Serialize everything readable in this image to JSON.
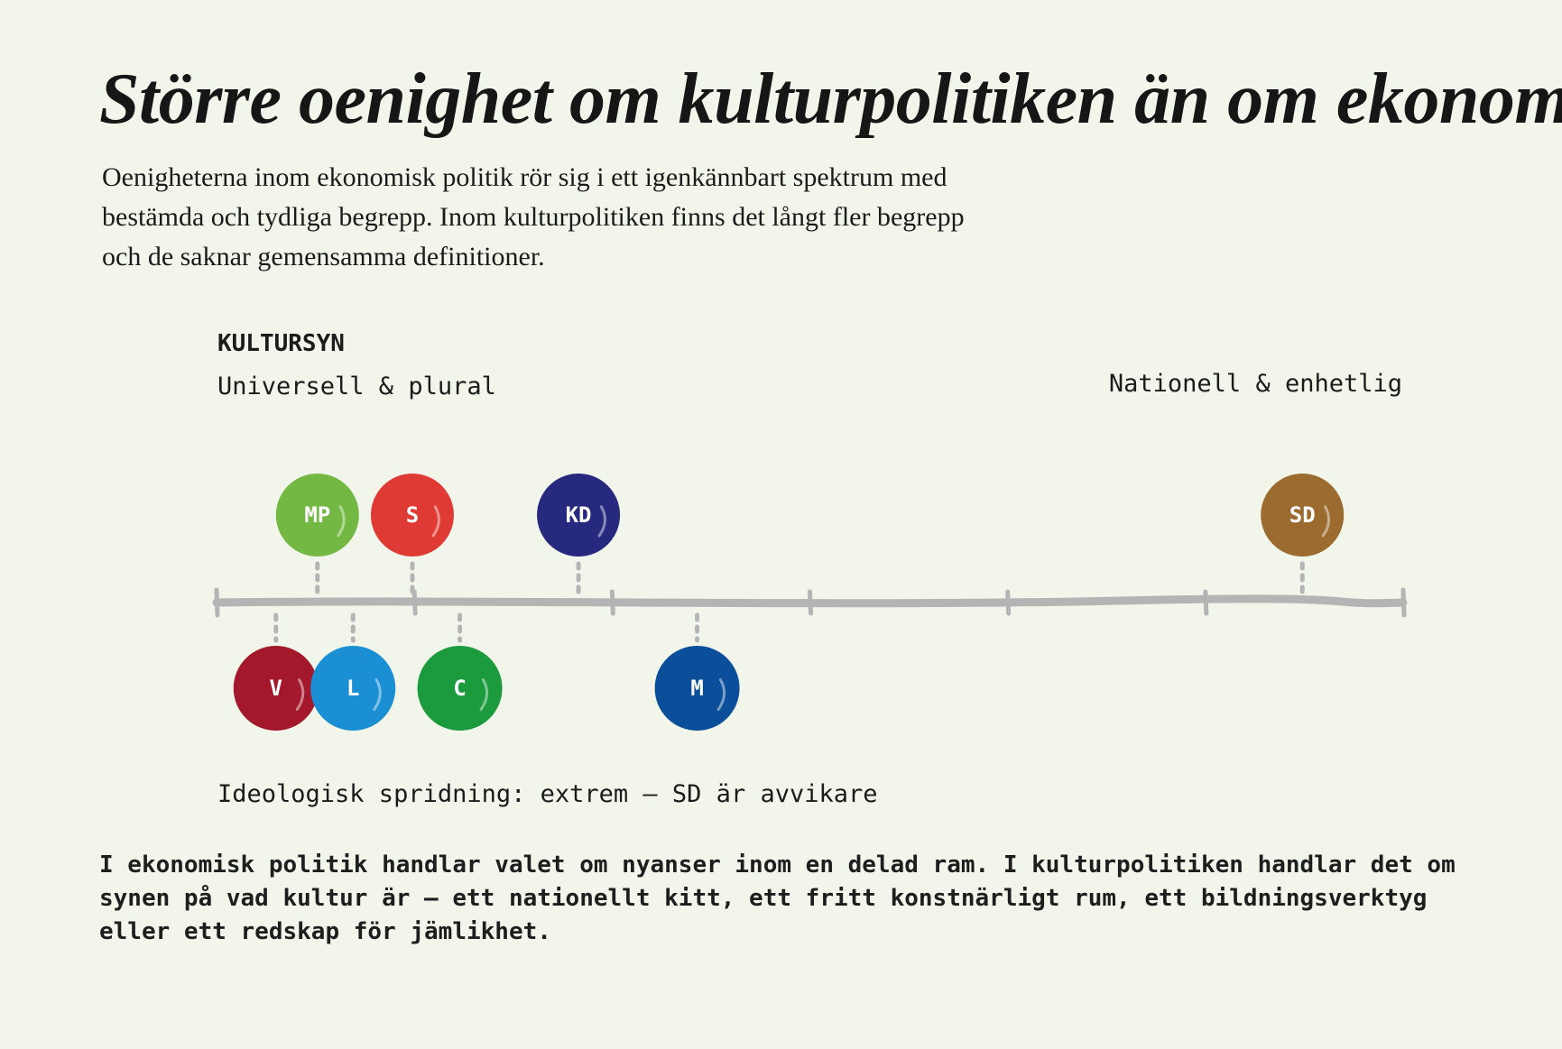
{
  "title": "Större oenighet om kulturpolitiken än om ekonomin",
  "lead": "Oenigheterna inom ekonomisk politik rör sig i ett igenkännbart spektrum med bestämda och tydliga begrepp. Inom kulturpolitiken finns det långt fler begrepp och de saknar gemensamma definitioner.",
  "scale": {
    "heading": "KULTURSYN",
    "left_pole": "Universell & plural",
    "right_pole": "Nationell & enhetlig",
    "parties": [
      {
        "label": "MP",
        "position": 0.085,
        "side": "above",
        "color": "#73b843"
      },
      {
        "label": "S",
        "position": 0.165,
        "side": "above",
        "color": "#df3b34"
      },
      {
        "label": "KD",
        "position": 0.305,
        "side": "above",
        "color": "#27297f"
      },
      {
        "label": "SD",
        "position": 0.915,
        "side": "above",
        "color": "#9b6b30"
      },
      {
        "label": "V",
        "position": 0.05,
        "side": "below",
        "color": "#a3182a"
      },
      {
        "label": "L",
        "position": 0.115,
        "side": "below",
        "color": "#1a8fd3"
      },
      {
        "label": "C",
        "position": 0.205,
        "side": "below",
        "color": "#1c9a3e"
      },
      {
        "label": "M",
        "position": 0.405,
        "side": "below",
        "color": "#0b4f9a"
      }
    ],
    "line_color": "#b4b4b4"
  },
  "spread": "Ideologisk spridning: extrem — SD är avvikare",
  "footer": "I ekonomisk politik handlar valet om nyanser inom en delad ram. I kulturpolitiken handlar det om synen på vad kultur är — ett nationellt kitt, ett fritt konstnärligt rum, ett bildningsverktyg eller ett redskap för jämlikhet."
}
